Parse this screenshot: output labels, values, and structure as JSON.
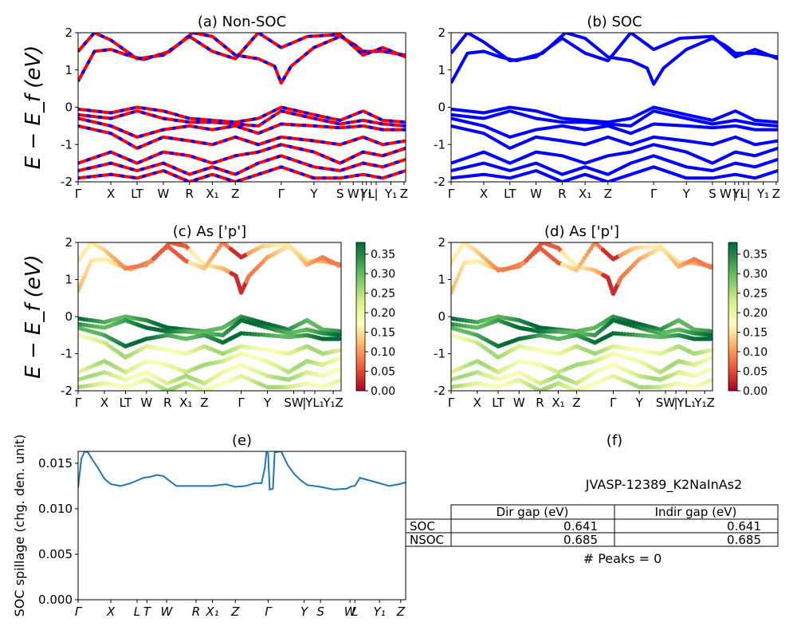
{
  "chart_data": [
    {
      "id": "a",
      "type": "line",
      "title": "(a) Non-SOC",
      "ylabel": "E − E_f (eV)",
      "ylim": [
        -2,
        2
      ],
      "yticks": [
        -2,
        -1,
        0,
        1,
        2
      ],
      "xticks": [
        "Γ",
        "X",
        "LT",
        "W",
        "R",
        "X₁",
        "Z",
        "Γ",
        "Y",
        "S",
        "W",
        "|",
        "L",
        "Y₁",
        "|",
        "Y₁",
        "Z"
      ],
      "xtick_pos": [
        0,
        0.1,
        0.18,
        0.26,
        0.34,
        0.41,
        0.48,
        0.62,
        0.72,
        0.8,
        0.84,
        0.868,
        0.895,
        0.88,
        0.91,
        0.955,
        0.995
      ],
      "colors": {
        "series": "#ff0000",
        "overlay": "#0000ff"
      },
      "series": [
        {
          "x": [
            0,
            0.05,
            0.1,
            0.15,
            0.2,
            0.28,
            0.35,
            0.41,
            0.48,
            0.55,
            0.6,
            0.62,
            0.65,
            0.72,
            0.8,
            0.84,
            0.87,
            0.93,
            1
          ],
          "y": [
            0.7,
            1.5,
            1.55,
            1.4,
            1.28,
            1.5,
            2,
            1.9,
            1.4,
            1.3,
            1.1,
            0.65,
            1.1,
            1.6,
            1.9,
            1.7,
            1.5,
            1.5,
            1.4
          ]
        },
        {
          "x": [
            0,
            0.05,
            0.1,
            0.18,
            0.26,
            0.34,
            0.41,
            0.48,
            0.55,
            0.62,
            0.7,
            0.8,
            0.87,
            0.93,
            1
          ],
          "y": [
            1.5,
            2,
            1.8,
            1.3,
            1.4,
            1.9,
            1.5,
            1.3,
            2,
            1.6,
            1.9,
            1.95,
            1.4,
            1.6,
            1.35
          ]
        },
        {
          "x": [
            0,
            0.1,
            0.18,
            0.26,
            0.34,
            0.41,
            0.48,
            0.55,
            0.62,
            0.72,
            0.8,
            0.87,
            0.93,
            1
          ],
          "y": [
            -0.05,
            -0.15,
            0,
            -0.1,
            -0.3,
            -0.35,
            -0.4,
            -0.3,
            0,
            -0.2,
            -0.35,
            -0.1,
            -0.35,
            -0.4
          ]
        },
        {
          "x": [
            0,
            0.1,
            0.18,
            0.26,
            0.34,
            0.41,
            0.48,
            0.55,
            0.62,
            0.72,
            0.8,
            0.87,
            0.93,
            1
          ],
          "y": [
            -0.2,
            -0.3,
            -0.1,
            -0.3,
            -0.4,
            -0.4,
            -0.45,
            -0.5,
            -0.1,
            -0.3,
            -0.45,
            -0.35,
            -0.45,
            -0.5
          ]
        },
        {
          "x": [
            0,
            0.1,
            0.18,
            0.26,
            0.34,
            0.41,
            0.48,
            0.55,
            0.62,
            0.72,
            0.8,
            0.87,
            0.93,
            1
          ],
          "y": [
            -0.3,
            -0.5,
            -0.8,
            -0.6,
            -0.5,
            -0.6,
            -0.5,
            -0.7,
            -0.45,
            -0.5,
            -0.55,
            -0.5,
            -0.6,
            -0.6
          ]
        },
        {
          "x": [
            0,
            0.1,
            0.18,
            0.26,
            0.34,
            0.41,
            0.48,
            0.55,
            0.62,
            0.72,
            0.8,
            0.87,
            0.93,
            1
          ],
          "y": [
            -0.5,
            -0.7,
            -1.1,
            -0.8,
            -0.9,
            -1,
            -0.8,
            -1,
            -0.8,
            -0.9,
            -1,
            -0.8,
            -1,
            -0.9
          ]
        },
        {
          "x": [
            0,
            0.1,
            0.18,
            0.26,
            0.34,
            0.41,
            0.48,
            0.55,
            0.62,
            0.72,
            0.8,
            0.87,
            0.93,
            1
          ],
          "y": [
            -1.5,
            -1.2,
            -1.5,
            -1.2,
            -1.3,
            -1.5,
            -1.3,
            -1.2,
            -1,
            -1.2,
            -1.5,
            -1.2,
            -1.3,
            -1.1
          ]
        },
        {
          "x": [
            0,
            0.1,
            0.18,
            0.26,
            0.34,
            0.41,
            0.48,
            0.55,
            0.62,
            0.72,
            0.8,
            0.87,
            0.93,
            1
          ],
          "y": [
            -1.7,
            -1.5,
            -1.7,
            -1.5,
            -1.8,
            -1.6,
            -1.8,
            -1.5,
            -1.3,
            -1.6,
            -1.7,
            -1.5,
            -1.6,
            -1.4
          ]
        },
        {
          "x": [
            0,
            0.1,
            0.18,
            0.26,
            0.34,
            0.41,
            0.48,
            0.55,
            0.62,
            0.72,
            0.8,
            0.87,
            0.93,
            1
          ],
          "y": [
            -1.9,
            -1.8,
            -1.9,
            -1.7,
            -2,
            -1.8,
            -2,
            -1.8,
            -1.6,
            -1.9,
            -1.9,
            -1.8,
            -1.9,
            -1.7
          ]
        }
      ]
    },
    {
      "id": "b",
      "type": "line",
      "title": "(b) SOC",
      "ylim": [
        -2,
        2
      ],
      "yticks": [
        -2,
        -1,
        0,
        1,
        2
      ],
      "xticks": [
        "Γ",
        "X",
        "LT",
        "W",
        "R",
        "X₁",
        "Z",
        "Γ",
        "Y",
        "S",
        "W",
        "|",
        "L",
        "Y₁",
        "|",
        "Y₁",
        "Z"
      ],
      "xtick_pos": [
        0,
        0.1,
        0.18,
        0.26,
        0.34,
        0.41,
        0.48,
        0.62,
        0.72,
        0.8,
        0.84,
        0.868,
        0.895,
        0.88,
        0.91,
        0.955,
        0.995
      ],
      "colors": {
        "series": "#0000ff"
      },
      "series": [
        {
          "x": [
            0,
            0.05,
            0.1,
            0.15,
            0.2,
            0.28,
            0.35,
            0.41,
            0.48,
            0.55,
            0.6,
            0.62,
            0.65,
            0.72,
            0.8,
            0.84,
            0.87,
            0.93,
            1
          ],
          "y": [
            0.65,
            1.45,
            1.5,
            1.35,
            1.25,
            1.45,
            2,
            1.85,
            1.35,
            1.25,
            1.05,
            0.62,
            1.05,
            1.55,
            1.85,
            1.65,
            1.45,
            1.45,
            1.35
          ]
        },
        {
          "x": [
            0,
            0.05,
            0.1,
            0.18,
            0.26,
            0.34,
            0.41,
            0.48,
            0.55,
            0.62,
            0.7,
            0.8,
            0.87,
            0.93,
            1
          ],
          "y": [
            1.45,
            2,
            1.75,
            1.25,
            1.35,
            1.85,
            1.45,
            1.25,
            2,
            1.55,
            1.85,
            1.9,
            1.35,
            1.55,
            1.3
          ]
        },
        {
          "x": [
            0,
            0.1,
            0.18,
            0.26,
            0.34,
            0.41,
            0.48,
            0.55,
            0.62,
            0.72,
            0.8,
            0.87,
            0.93,
            1
          ],
          "y": [
            -0.05,
            -0.15,
            0,
            -0.1,
            -0.3,
            -0.35,
            -0.4,
            -0.3,
            0,
            -0.2,
            -0.35,
            -0.1,
            -0.35,
            -0.4
          ]
        },
        {
          "x": [
            0,
            0.1,
            0.18,
            0.26,
            0.34,
            0.41,
            0.48,
            0.55,
            0.62,
            0.72,
            0.8,
            0.87,
            0.93,
            1
          ],
          "y": [
            -0.2,
            -0.3,
            -0.1,
            -0.3,
            -0.4,
            -0.4,
            -0.45,
            -0.5,
            -0.1,
            -0.3,
            -0.45,
            -0.35,
            -0.45,
            -0.5
          ]
        },
        {
          "x": [
            0,
            0.1,
            0.18,
            0.26,
            0.34,
            0.41,
            0.48,
            0.55,
            0.62,
            0.72,
            0.8,
            0.87,
            0.93,
            1
          ],
          "y": [
            -0.3,
            -0.5,
            -0.8,
            -0.6,
            -0.5,
            -0.6,
            -0.5,
            -0.7,
            -0.45,
            -0.5,
            -0.55,
            -0.5,
            -0.6,
            -0.6
          ]
        },
        {
          "x": [
            0,
            0.1,
            0.18,
            0.26,
            0.34,
            0.41,
            0.48,
            0.55,
            0.62,
            0.72,
            0.8,
            0.87,
            0.93,
            1
          ],
          "y": [
            -0.5,
            -0.7,
            -1.1,
            -0.8,
            -0.9,
            -1,
            -0.8,
            -1,
            -0.8,
            -0.9,
            -1,
            -0.8,
            -1,
            -0.9
          ]
        },
        {
          "x": [
            0,
            0.1,
            0.18,
            0.26,
            0.34,
            0.41,
            0.48,
            0.55,
            0.62,
            0.72,
            0.8,
            0.87,
            0.93,
            1
          ],
          "y": [
            -1.5,
            -1.2,
            -1.5,
            -1.2,
            -1.3,
            -1.5,
            -1.3,
            -1.2,
            -1,
            -1.2,
            -1.5,
            -1.2,
            -1.3,
            -1.1
          ]
        },
        {
          "x": [
            0,
            0.1,
            0.18,
            0.26,
            0.34,
            0.41,
            0.48,
            0.55,
            0.62,
            0.72,
            0.8,
            0.87,
            0.93,
            1
          ],
          "y": [
            -1.7,
            -1.5,
            -1.7,
            -1.5,
            -1.8,
            -1.6,
            -1.8,
            -1.5,
            -1.3,
            -1.6,
            -1.7,
            -1.5,
            -1.6,
            -1.4
          ]
        },
        {
          "x": [
            0,
            0.1,
            0.18,
            0.26,
            0.34,
            0.41,
            0.48,
            0.55,
            0.62,
            0.72,
            0.8,
            0.87,
            0.93,
            1
          ],
          "y": [
            -1.9,
            -1.8,
            -1.9,
            -1.7,
            -2,
            -1.8,
            -2,
            -1.8,
            -1.6,
            -1.9,
            -1.9,
            -1.8,
            -1.9,
            -1.7
          ]
        }
      ]
    },
    {
      "id": "c",
      "type": "scatter",
      "title": "(c)  As ['p']",
      "ylabel": "E − E_f (eV)",
      "ylim": [
        -2,
        2
      ],
      "yticks": [
        -2,
        -1,
        0,
        1,
        2
      ],
      "xticks": [
        "Γ",
        "X",
        "LT",
        "W",
        "R",
        "X₁",
        "Z",
        "Γ",
        "Y",
        "SW",
        "|",
        "YL₁",
        "Y₁Z"
      ],
      "xtick_pos": [
        0,
        0.1,
        0.18,
        0.26,
        0.34,
        0.41,
        0.48,
        0.62,
        0.72,
        0.82,
        0.86,
        0.9,
        0.97
      ],
      "colorbar": {
        "min": 0.0,
        "max": 0.38,
        "ticks": [
          "0.00",
          "0.05",
          "0.10",
          "0.15",
          "0.20",
          "0.25",
          "0.30",
          "0.35"
        ]
      }
    },
    {
      "id": "d",
      "type": "scatter",
      "title": "(d) As ['p']",
      "ylim": [
        -2,
        2
      ],
      "yticks": [
        -2,
        -1,
        0,
        1,
        2
      ],
      "xticks": [
        "Γ",
        "X",
        "LT",
        "W",
        "R",
        "X₁",
        "Z",
        "Γ",
        "Y",
        "SW",
        "|",
        "YL₁",
        "Y₁Z"
      ],
      "xtick_pos": [
        0,
        0.1,
        0.18,
        0.26,
        0.34,
        0.41,
        0.48,
        0.62,
        0.72,
        0.82,
        0.86,
        0.9,
        0.97
      ],
      "colorbar": {
        "min": 0.0,
        "max": 0.38,
        "ticks": [
          "0.00",
          "0.05",
          "0.10",
          "0.15",
          "0.20",
          "0.25",
          "0.30",
          "0.35"
        ]
      }
    },
    {
      "id": "e",
      "type": "line",
      "title": "(e)",
      "ylabel": "SOC spillage (chg. den. unit)",
      "ylim": [
        0,
        0.0163
      ],
      "yticks": [
        "0.000",
        "0.005",
        "0.010",
        "0.015"
      ],
      "yticks_values": [
        0,
        0.005,
        0.01,
        0.015
      ],
      "xticks": [
        "Γ",
        "X",
        "L",
        "T",
        "W",
        "R",
        "X₁",
        "Z",
        "Γ",
        "Y",
        "S",
        "W",
        "L",
        "Y₁",
        "Z"
      ],
      "xtick_pos": [
        0,
        0.1,
        0.18,
        0.21,
        0.27,
        0.36,
        0.41,
        0.48,
        0.58,
        0.69,
        0.74,
        0.83,
        0.845,
        0.92,
        0.985
      ],
      "color": "#1f77b4",
      "series": [
        {
          "x": [
            0,
            0.01,
            0.02,
            0.03,
            0.04,
            0.06,
            0.08,
            0.1,
            0.13,
            0.16,
            0.18,
            0.2,
            0.22,
            0.24,
            0.26,
            0.27,
            0.3,
            0.34,
            0.38,
            0.41,
            0.43,
            0.45,
            0.48,
            0.51,
            0.54,
            0.56,
            0.57,
            0.575,
            0.58,
            0.585,
            0.595,
            0.6,
            0.62,
            0.64,
            0.66,
            0.68,
            0.7,
            0.74,
            0.78,
            0.82,
            0.83,
            0.84,
            0.845,
            0.86,
            0.88,
            0.92,
            0.95,
            0.98,
            1.0
          ],
          "y": [
            0.0123,
            0.0155,
            0.0163,
            0.0162,
            0.0156,
            0.0145,
            0.0133,
            0.0127,
            0.0125,
            0.0128,
            0.0131,
            0.0134,
            0.0135,
            0.0137,
            0.0136,
            0.0133,
            0.0125,
            0.0125,
            0.0125,
            0.0125,
            0.0126,
            0.0127,
            0.0124,
            0.0125,
            0.0128,
            0.0128,
            0.0145,
            0.0162,
            0.0161,
            0.0121,
            0.0122,
            0.0162,
            0.0163,
            0.0148,
            0.0138,
            0.0131,
            0.0126,
            0.0124,
            0.0121,
            0.0122,
            0.0124,
            0.0125,
            0.0125,
            0.0134,
            0.0132,
            0.0128,
            0.0125,
            0.0127,
            0.0129
          ]
        }
      ]
    }
  ],
  "panel_f": {
    "title": "(f)",
    "caption": "JVASP-12389_K2NaInAs2",
    "table": {
      "headers": [
        "",
        "Dir gap (eV)",
        "Indir gap (eV)"
      ],
      "rows": [
        [
          "SOC",
          "0.641",
          "0.641"
        ],
        [
          "NSOC",
          "0.685",
          "0.685"
        ]
      ]
    },
    "peaks": "# Peaks = 0"
  }
}
